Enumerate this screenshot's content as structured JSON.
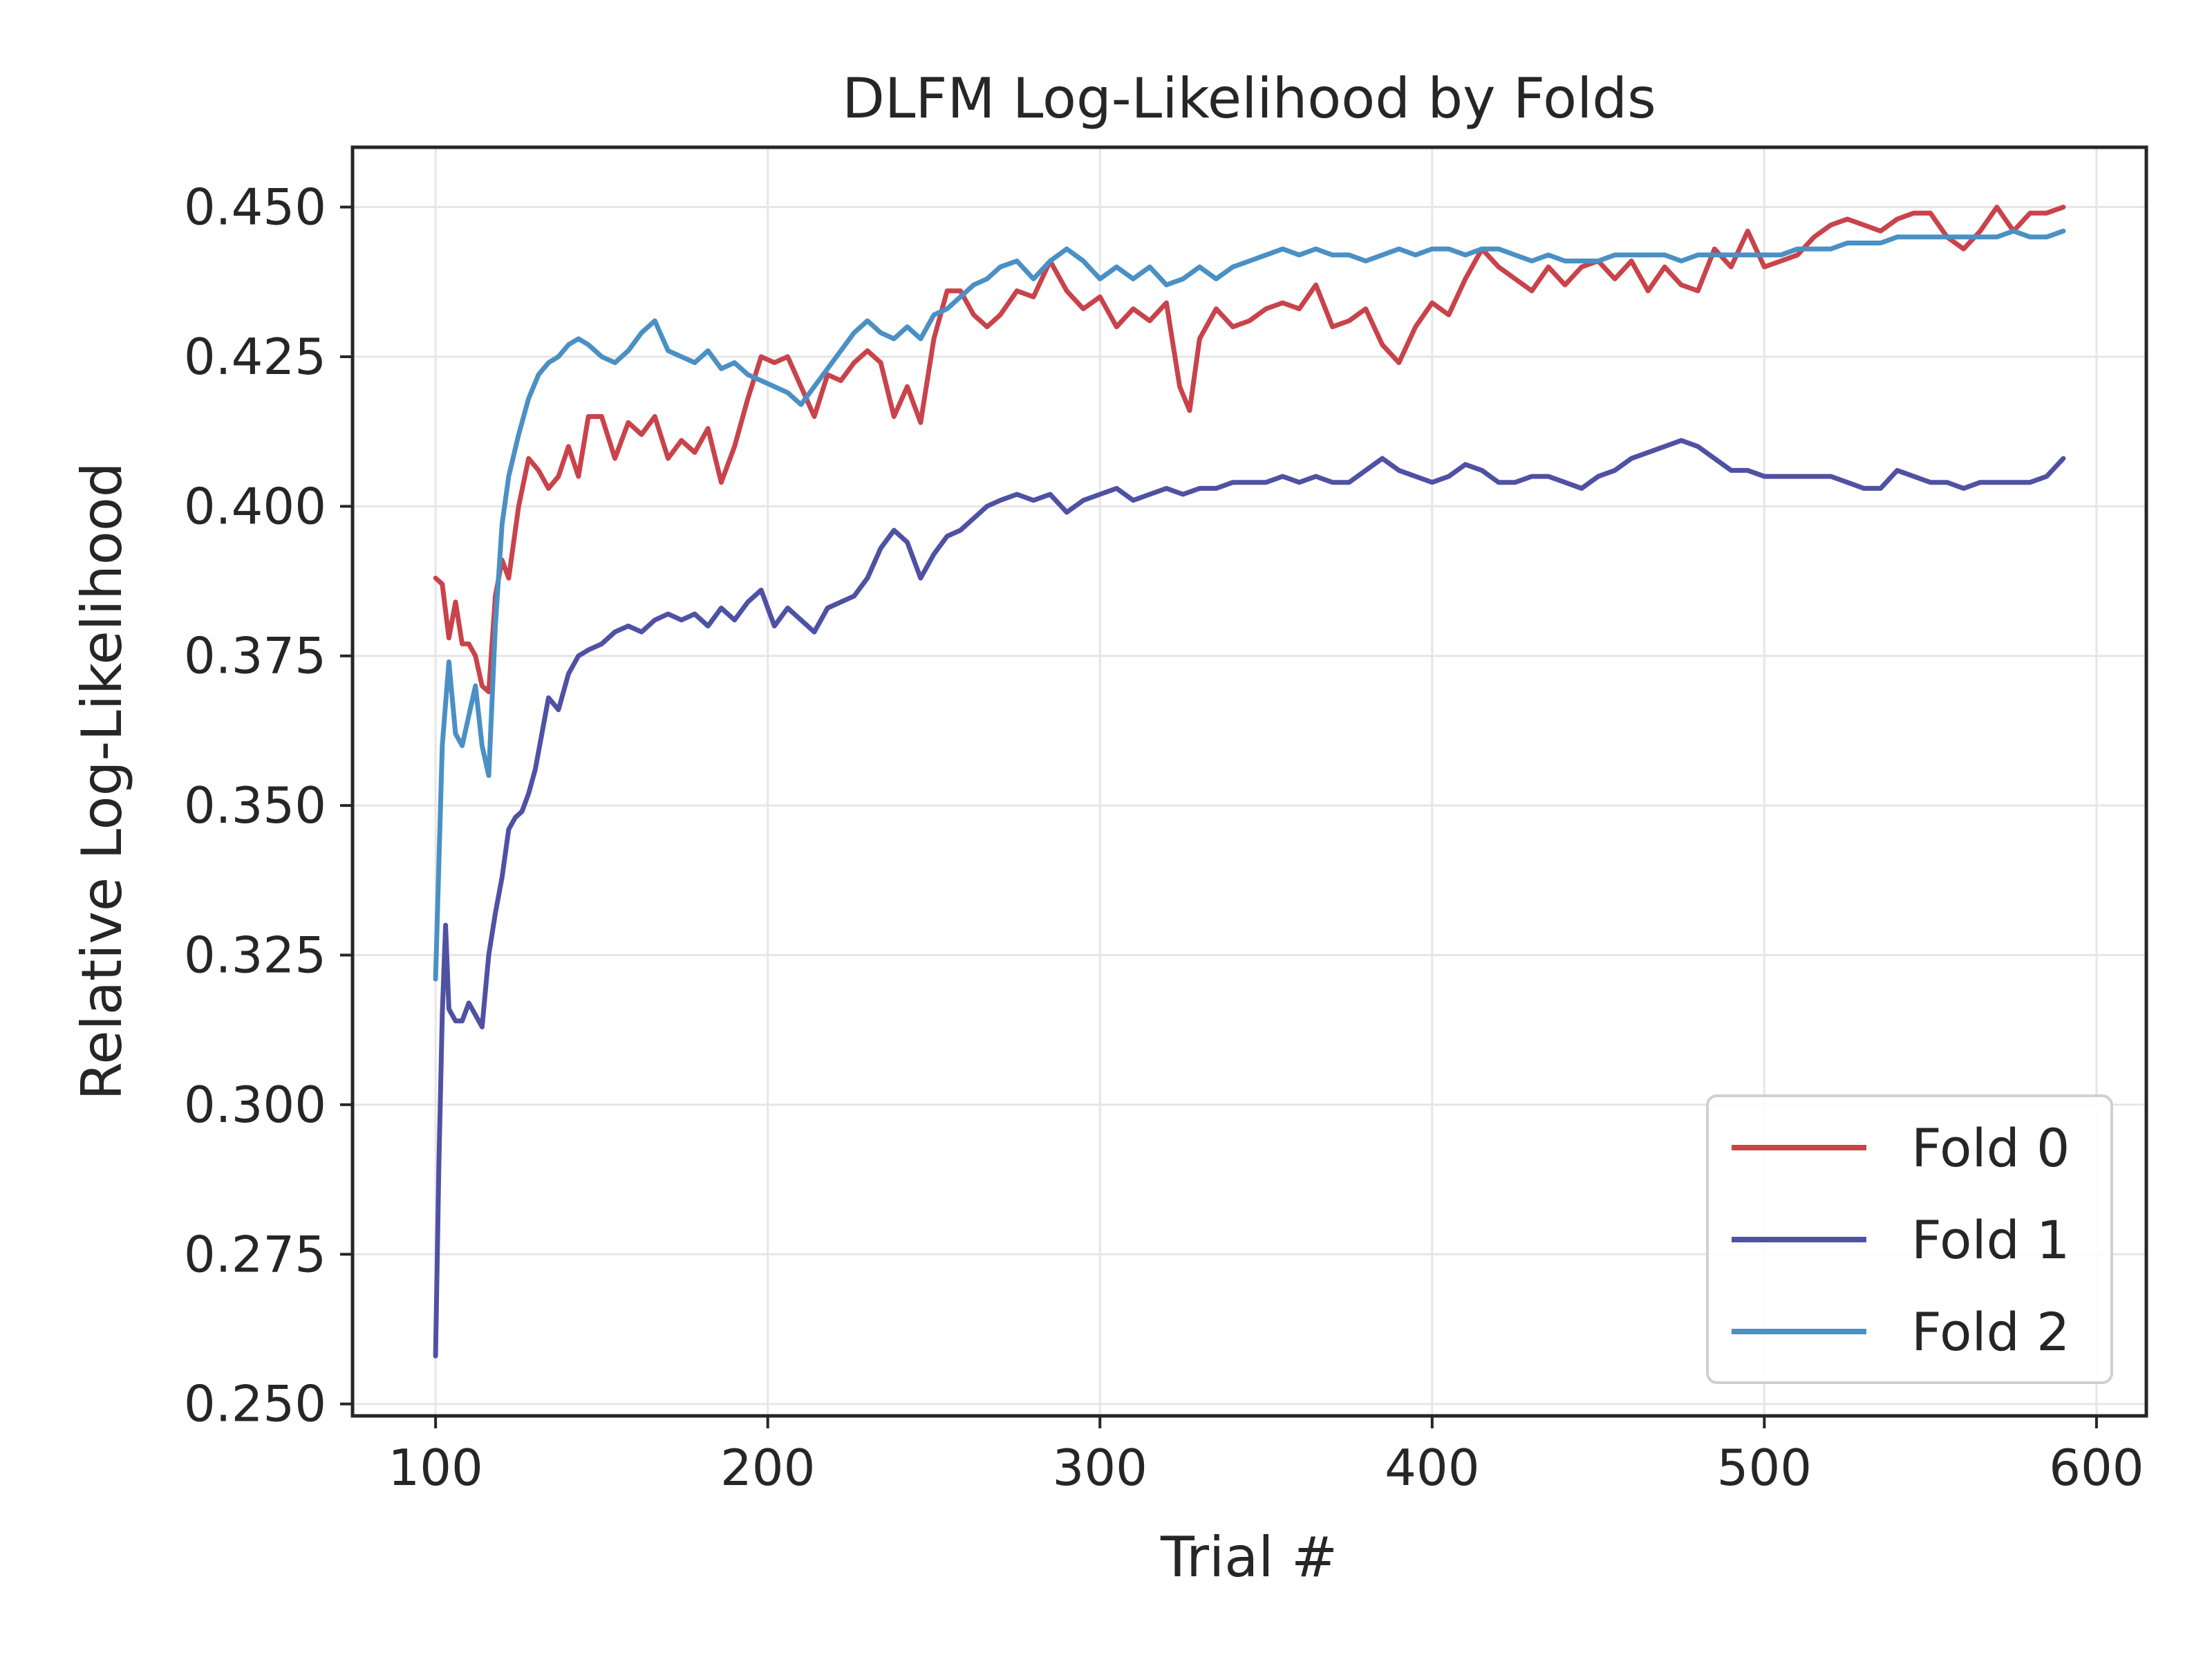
{
  "chart_data": {
    "type": "line",
    "title": "DLFM Log-Likelihood by Folds",
    "xlabel": "Trial #",
    "ylabel": "Relative Log-Likelihood",
    "xlim": [
      75,
      615
    ],
    "ylim": [
      0.248,
      0.46
    ],
    "xticks": [
      100,
      200,
      300,
      400,
      500,
      600
    ],
    "xtick_labels": [
      "100",
      "200",
      "300",
      "400",
      "500",
      "600"
    ],
    "yticks": [
      0.25,
      0.275,
      0.3,
      0.325,
      0.35,
      0.375,
      0.4,
      0.425,
      0.45
    ],
    "ytick_labels": [
      "0.250",
      "0.275",
      "0.300",
      "0.325",
      "0.350",
      "0.375",
      "0.400",
      "0.425",
      "0.450"
    ],
    "grid": true,
    "legend_position": "lower-right",
    "series": [
      {
        "name": "Fold 0",
        "color": "#c9434b",
        "x": [
          100,
          102,
          104,
          106,
          108,
          110,
          112,
          114,
          116,
          118,
          120,
          122,
          125,
          128,
          131,
          134,
          137,
          140,
          143,
          146,
          150,
          154,
          158,
          162,
          166,
          170,
          174,
          178,
          182,
          186,
          190,
          194,
          198,
          202,
          206,
          210,
          214,
          218,
          222,
          226,
          230,
          234,
          238,
          242,
          246,
          250,
          254,
          258,
          262,
          266,
          270,
          275,
          280,
          285,
          290,
          295,
          300,
          305,
          310,
          315,
          320,
          324,
          327,
          330,
          335,
          340,
          345,
          350,
          355,
          360,
          365,
          370,
          375,
          380,
          385,
          390,
          395,
          400,
          405,
          410,
          415,
          420,
          425,
          430,
          435,
          440,
          445,
          450,
          455,
          460,
          465,
          470,
          475,
          480,
          485,
          490,
          495,
          500,
          505,
          510,
          515,
          520,
          525,
          530,
          535,
          540,
          545,
          550,
          555,
          560,
          565,
          570,
          575,
          580,
          585,
          590
        ],
        "values": [
          0.388,
          0.387,
          0.378,
          0.384,
          0.377,
          0.377,
          0.375,
          0.37,
          0.369,
          0.385,
          0.391,
          0.388,
          0.4,
          0.408,
          0.406,
          0.403,
          0.405,
          0.41,
          0.405,
          0.415,
          0.415,
          0.408,
          0.414,
          0.412,
          0.415,
          0.408,
          0.411,
          0.409,
          0.413,
          0.404,
          0.41,
          0.418,
          0.425,
          0.424,
          0.425,
          0.42,
          0.415,
          0.422,
          0.421,
          0.424,
          0.426,
          0.424,
          0.415,
          0.42,
          0.414,
          0.428,
          0.436,
          0.436,
          0.432,
          0.43,
          0.432,
          0.436,
          0.435,
          0.441,
          0.436,
          0.433,
          0.435,
          0.43,
          0.433,
          0.431,
          0.434,
          0.42,
          0.416,
          0.428,
          0.433,
          0.43,
          0.431,
          0.433,
          0.434,
          0.433,
          0.437,
          0.43,
          0.431,
          0.433,
          0.427,
          0.424,
          0.43,
          0.434,
          0.432,
          0.438,
          0.443,
          0.44,
          0.438,
          0.436,
          0.44,
          0.437,
          0.44,
          0.441,
          0.438,
          0.441,
          0.436,
          0.44,
          0.437,
          0.436,
          0.443,
          0.44,
          0.446,
          0.44,
          0.441,
          0.442,
          0.445,
          0.447,
          0.448,
          0.447,
          0.446,
          0.448,
          0.449,
          0.449,
          0.445,
          0.443,
          0.446,
          0.45,
          0.446,
          0.449,
          0.449,
          0.45
        ]
      },
      {
        "name": "Fold 1",
        "color": "#4f51a3",
        "x": [
          100,
          101,
          102,
          103,
          104,
          106,
          108,
          110,
          112,
          114,
          116,
          118,
          120,
          122,
          124,
          126,
          128,
          130,
          132,
          134,
          137,
          140,
          143,
          146,
          150,
          154,
          158,
          162,
          166,
          170,
          174,
          178,
          182,
          186,
          190,
          194,
          198,
          202,
          206,
          210,
          214,
          218,
          222,
          226,
          230,
          234,
          238,
          242,
          246,
          250,
          254,
          258,
          262,
          266,
          270,
          275,
          280,
          285,
          290,
          295,
          300,
          305,
          310,
          315,
          320,
          325,
          330,
          335,
          340,
          345,
          350,
          355,
          360,
          365,
          370,
          375,
          380,
          385,
          390,
          395,
          400,
          405,
          410,
          415,
          420,
          425,
          430,
          435,
          440,
          445,
          450,
          455,
          460,
          465,
          470,
          475,
          480,
          485,
          490,
          495,
          500,
          505,
          510,
          515,
          520,
          525,
          530,
          535,
          540,
          545,
          550,
          555,
          560,
          565,
          570,
          575,
          580,
          585,
          590
        ],
        "values": [
          0.258,
          0.29,
          0.315,
          0.33,
          0.316,
          0.314,
          0.314,
          0.317,
          0.315,
          0.313,
          0.325,
          0.332,
          0.338,
          0.346,
          0.348,
          0.349,
          0.352,
          0.356,
          0.362,
          0.368,
          0.366,
          0.372,
          0.375,
          0.376,
          0.377,
          0.379,
          0.38,
          0.379,
          0.381,
          0.382,
          0.381,
          0.382,
          0.38,
          0.383,
          0.381,
          0.384,
          0.386,
          0.38,
          0.383,
          0.381,
          0.379,
          0.383,
          0.384,
          0.385,
          0.388,
          0.393,
          0.396,
          0.394,
          0.388,
          0.392,
          0.395,
          0.396,
          0.398,
          0.4,
          0.401,
          0.402,
          0.401,
          0.402,
          0.399,
          0.401,
          0.402,
          0.403,
          0.401,
          0.402,
          0.403,
          0.402,
          0.403,
          0.403,
          0.404,
          0.404,
          0.404,
          0.405,
          0.404,
          0.405,
          0.404,
          0.404,
          0.406,
          0.408,
          0.406,
          0.405,
          0.404,
          0.405,
          0.407,
          0.406,
          0.404,
          0.404,
          0.405,
          0.405,
          0.404,
          0.403,
          0.405,
          0.406,
          0.408,
          0.409,
          0.41,
          0.411,
          0.41,
          0.408,
          0.406,
          0.406,
          0.405,
          0.405,
          0.405,
          0.405,
          0.405,
          0.404,
          0.403,
          0.403,
          0.406,
          0.405,
          0.404,
          0.404,
          0.403,
          0.404,
          0.404,
          0.404,
          0.404,
          0.405,
          0.408
        ]
      },
      {
        "name": "Fold 2",
        "color": "#4a90c4",
        "x": [
          100,
          102,
          104,
          106,
          108,
          110,
          112,
          114,
          116,
          118,
          120,
          122,
          125,
          128,
          131,
          134,
          137,
          140,
          143,
          146,
          150,
          154,
          158,
          162,
          166,
          170,
          174,
          178,
          182,
          186,
          190,
          194,
          198,
          202,
          206,
          210,
          214,
          218,
          222,
          226,
          230,
          234,
          238,
          242,
          246,
          250,
          254,
          258,
          262,
          266,
          270,
          275,
          280,
          285,
          290,
          295,
          300,
          305,
          310,
          315,
          320,
          325,
          330,
          335,
          340,
          345,
          350,
          355,
          360,
          365,
          370,
          375,
          380,
          385,
          390,
          395,
          400,
          405,
          410,
          415,
          420,
          425,
          430,
          435,
          440,
          445,
          450,
          455,
          460,
          465,
          470,
          475,
          480,
          485,
          490,
          495,
          500,
          505,
          510,
          515,
          520,
          525,
          530,
          535,
          540,
          545,
          550,
          555,
          560,
          565,
          570,
          575,
          580,
          585,
          590
        ],
        "values": [
          0.321,
          0.36,
          0.374,
          0.362,
          0.36,
          0.365,
          0.37,
          0.36,
          0.355,
          0.38,
          0.397,
          0.405,
          0.412,
          0.418,
          0.422,
          0.424,
          0.425,
          0.427,
          0.428,
          0.427,
          0.425,
          0.424,
          0.426,
          0.429,
          0.431,
          0.426,
          0.425,
          0.424,
          0.426,
          0.423,
          0.424,
          0.422,
          0.421,
          0.42,
          0.419,
          0.417,
          0.42,
          0.423,
          0.426,
          0.429,
          0.431,
          0.429,
          0.428,
          0.43,
          0.428,
          0.432,
          0.433,
          0.435,
          0.437,
          0.438,
          0.44,
          0.441,
          0.438,
          0.441,
          0.443,
          0.441,
          0.438,
          0.44,
          0.438,
          0.44,
          0.437,
          0.438,
          0.44,
          0.438,
          0.44,
          0.441,
          0.442,
          0.443,
          0.442,
          0.443,
          0.442,
          0.442,
          0.441,
          0.442,
          0.443,
          0.442,
          0.443,
          0.443,
          0.442,
          0.443,
          0.443,
          0.442,
          0.441,
          0.442,
          0.441,
          0.441,
          0.441,
          0.442,
          0.442,
          0.442,
          0.442,
          0.441,
          0.442,
          0.442,
          0.442,
          0.442,
          0.442,
          0.442,
          0.443,
          0.443,
          0.443,
          0.444,
          0.444,
          0.444,
          0.445,
          0.445,
          0.445,
          0.445,
          0.445,
          0.445,
          0.445,
          0.446,
          0.445,
          0.445,
          0.446
        ]
      }
    ]
  }
}
